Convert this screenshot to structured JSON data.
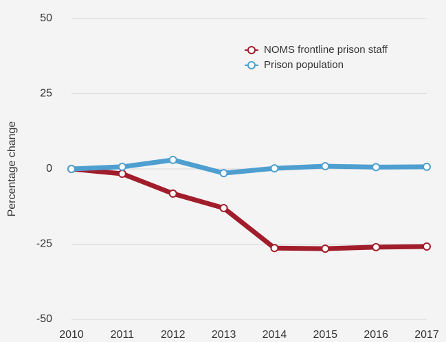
{
  "chart_data": {
    "type": "line",
    "y_label": "Percentage change",
    "categories": [
      "2010",
      "2011",
      "2012",
      "2013",
      "2014",
      "2015",
      "2016",
      "2017"
    ],
    "series": [
      {
        "name": "NOMS frontline prison staff",
        "color": "#a11d2b",
        "values": [
          0,
          -1.6,
          -8.2,
          -13,
          -26.3,
          -26.5,
          -26,
          -25.8
        ]
      },
      {
        "name": "Prison population",
        "color": "#4e9fd0",
        "values": [
          0,
          0.7,
          3,
          -1.4,
          0.2,
          0.9,
          0.6,
          0.7
        ]
      }
    ],
    "ylim": [
      -50,
      50
    ],
    "yticks": [
      -50,
      -25,
      0,
      25,
      50
    ],
    "grid": true,
    "legend": "top-right"
  }
}
